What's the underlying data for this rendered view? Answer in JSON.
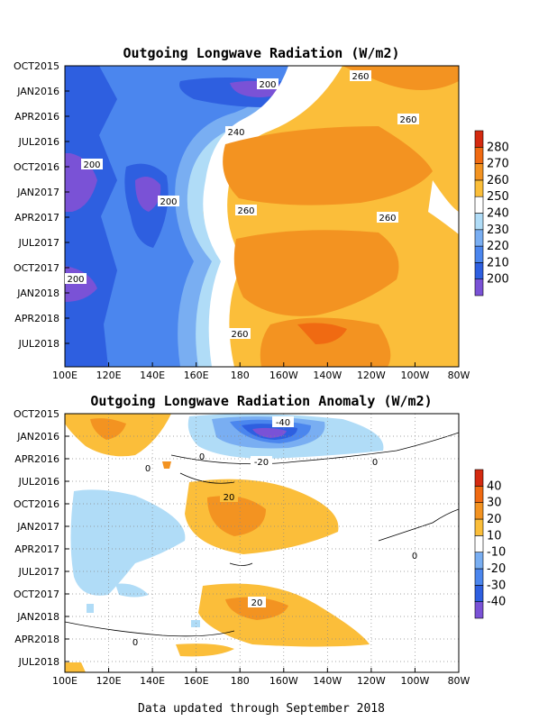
{
  "chart_data": [
    {
      "type": "heatmap",
      "subtype": "filled-contour",
      "title": "Outgoing Longwave Radiation (W/m2)",
      "x_ticks": [
        "100E",
        "120E",
        "140E",
        "160E",
        "180",
        "160W",
        "140W",
        "120W",
        "100W",
        "80W"
      ],
      "y_ticks": [
        "OCT2015",
        "JAN2016",
        "APR2016",
        "JUL2016",
        "OCT2016",
        "JAN2017",
        "APR2017",
        "JUL2017",
        "OCT2017",
        "JAN2018",
        "APR2018",
        "JUL2018"
      ],
      "y_direction": "time-increases-downward",
      "colorbar": {
        "levels": [
          200,
          210,
          220,
          230,
          240,
          250,
          260,
          270,
          280
        ],
        "colors": [
          "#7a52d6",
          "#2e5fe0",
          "#4b86ee",
          "#79aef2",
          "#b0dcf7",
          "#ffffff",
          "#fbbe3a",
          "#f39321",
          "#f06a12",
          "#d42a10"
        ]
      },
      "contour_labels": [
        {
          "text": "200",
          "lon": "165W",
          "time": "JAN2016"
        },
        {
          "text": "260",
          "lon": "120W",
          "time": "OCT2015"
        },
        {
          "text": "260",
          "lon": "120W",
          "time": "APR2016"
        },
        {
          "text": "240",
          "lon": "170E",
          "time": "MAY2016"
        },
        {
          "text": "200",
          "lon": "110E",
          "time": "OCT2016"
        },
        {
          "text": "200",
          "lon": "145E",
          "time": "FEB2017"
        },
        {
          "text": "260",
          "lon": "178E",
          "time": "MAR2017"
        },
        {
          "text": "260",
          "lon": "125W",
          "time": "APR2017"
        },
        {
          "text": "200",
          "lon": "103E",
          "time": "DEC2017"
        },
        {
          "text": "260",
          "lon": "175E",
          "time": "JUN2018"
        }
      ]
    },
    {
      "type": "heatmap",
      "subtype": "filled-contour",
      "title": "Outgoing Longwave Radiation Anomaly (W/m2)",
      "x_ticks": [
        "100E",
        "120E",
        "140E",
        "160E",
        "180",
        "160W",
        "140W",
        "120W",
        "100W",
        "80W"
      ],
      "y_ticks": [
        "OCT2015",
        "JAN2016",
        "APR2016",
        "JUL2016",
        "OCT2016",
        "JAN2017",
        "APR2017",
        "JUL2017",
        "OCT2017",
        "JAN2018",
        "APR2018",
        "JUL2018"
      ],
      "y_direction": "time-increases-downward",
      "colorbar": {
        "levels": [
          -40,
          -30,
          -20,
          -10,
          10,
          20,
          30,
          40
        ],
        "tick_labels": [
          "-40",
          "-30",
          "-20",
          "-10",
          "10",
          "20",
          "30",
          "40"
        ],
        "colors": [
          "#7a52d6",
          "#2e5fe0",
          "#4b86ee",
          "#79aef2",
          "#ffffff",
          "#fbbe3a",
          "#f39321",
          "#f06a12",
          "#d42a10"
        ]
      },
      "contour_labels": [
        {
          "text": "-40",
          "lon": "165W",
          "time": "DEC2015"
        },
        {
          "text": "-20",
          "lon": "170W",
          "time": "APR2016"
        },
        {
          "text": "0",
          "lon": "160E",
          "time": "APR2016"
        },
        {
          "text": "0",
          "lon": "105W",
          "time": "APR2016"
        },
        {
          "text": "0",
          "lon": "125E",
          "time": "MAY2016"
        },
        {
          "text": "20",
          "lon": "175E",
          "time": "SEP2016"
        },
        {
          "text": "0",
          "lon": "120W",
          "time": "MAY2017"
        },
        {
          "text": "20",
          "lon": "170W",
          "time": "NOV2017"
        },
        {
          "text": "0",
          "lon": "125E",
          "time": "MAR2018"
        }
      ],
      "grid": "dotted",
      "grid_on": true
    }
  ],
  "footer": "Data updated through September 2018"
}
